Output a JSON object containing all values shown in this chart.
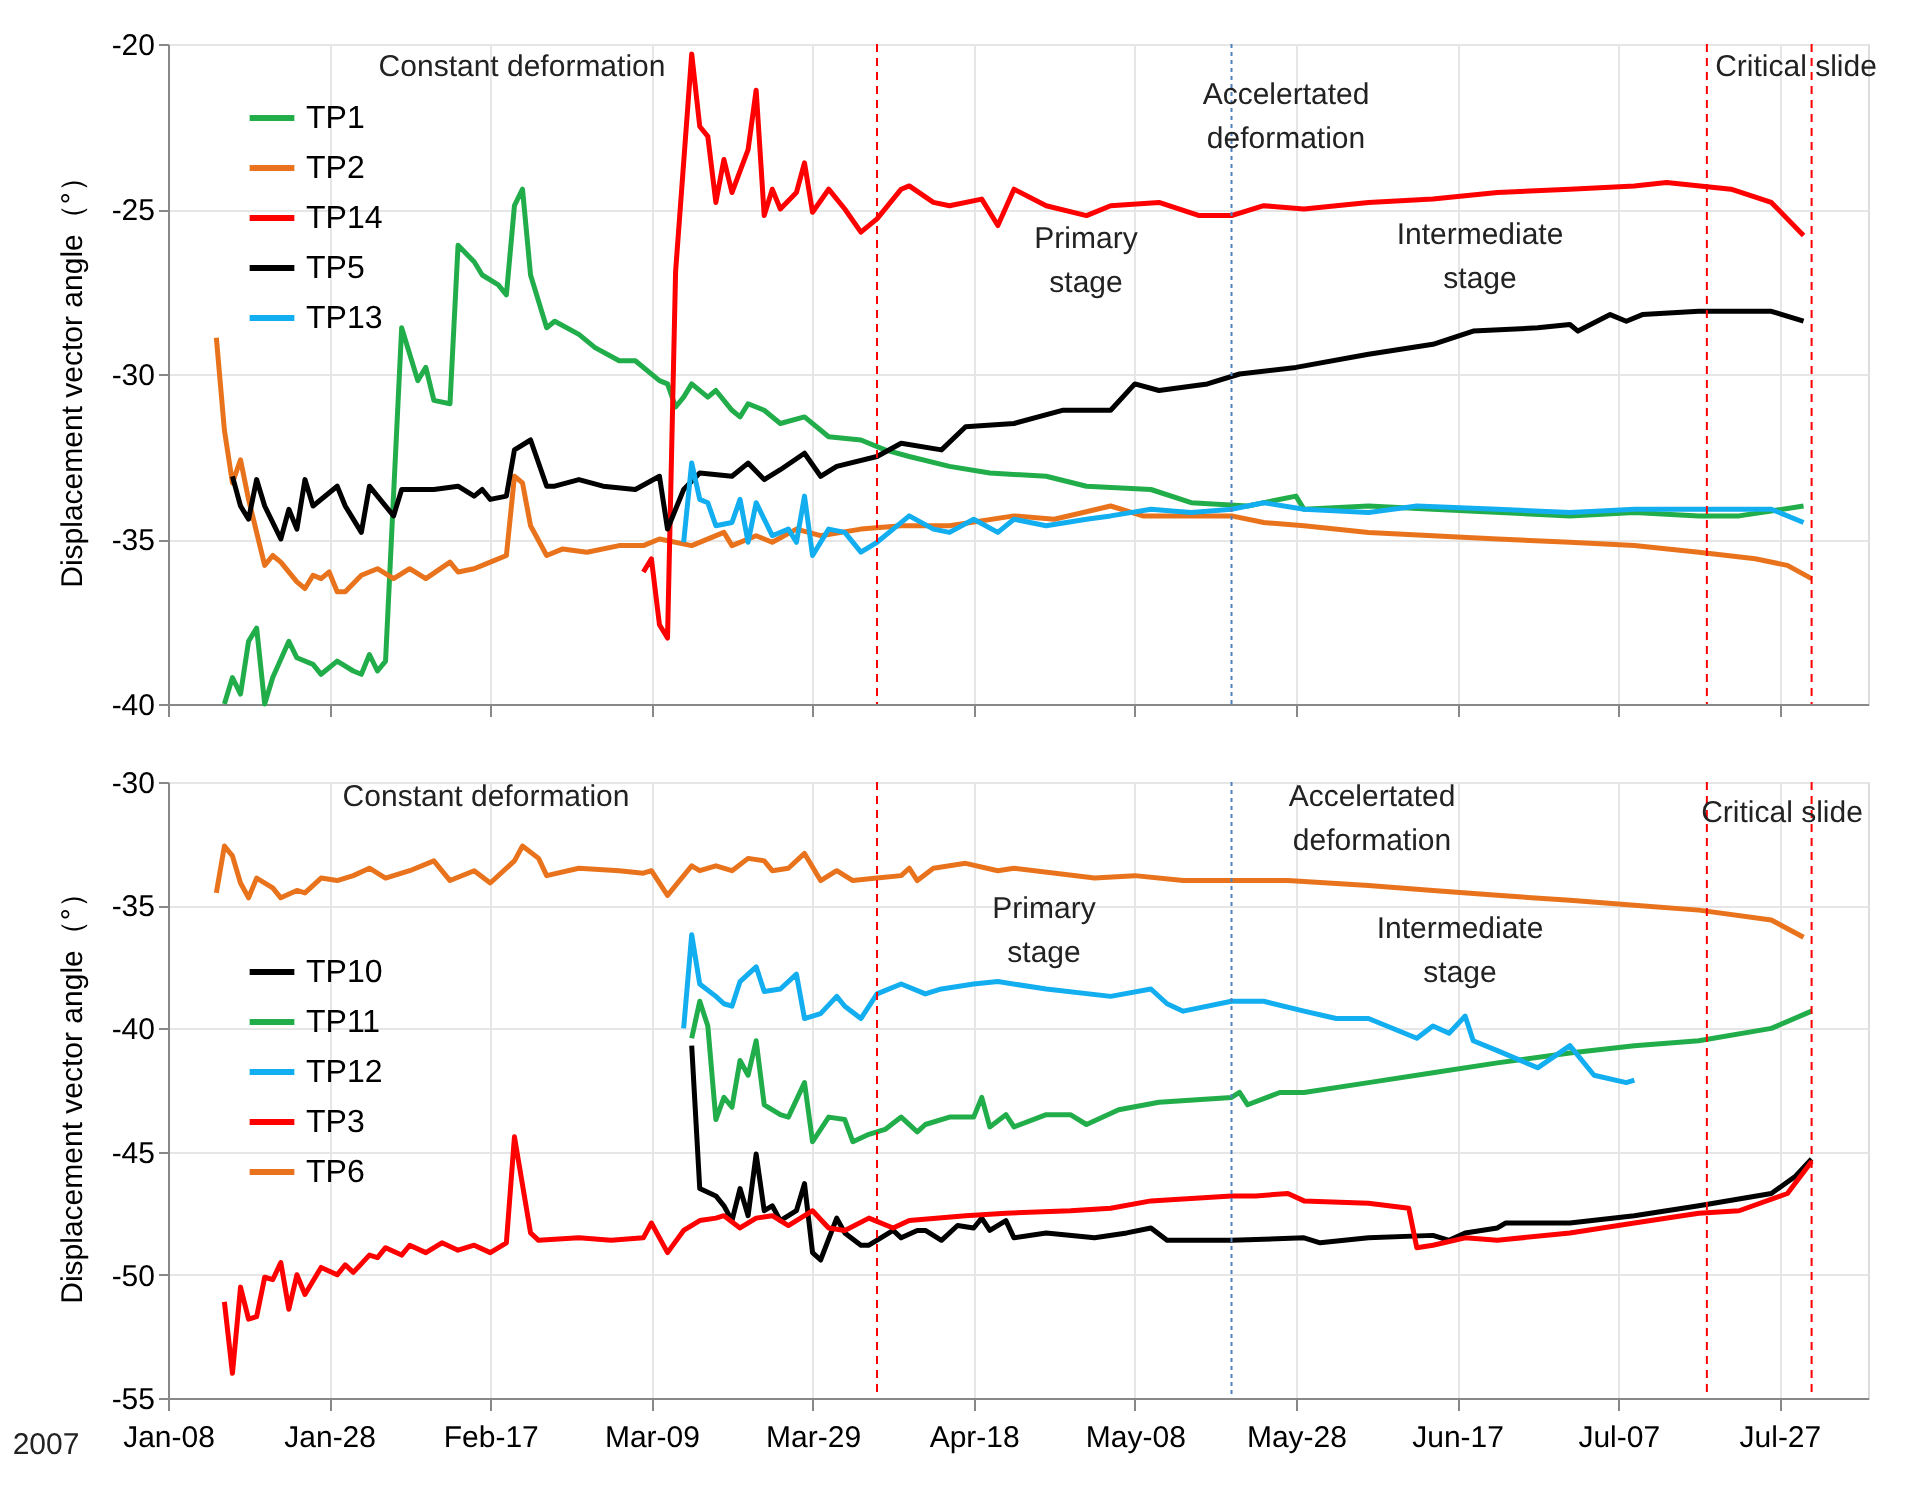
{
  "chart_data": [
    {
      "type": "line",
      "ylabel": "Displacement vector angle（°）",
      "xlim": [
        "2007-01-08",
        "2007-08-07"
      ],
      "ylim": [
        -40,
        -20
      ],
      "yticks": [
        -40,
        -35,
        -30,
        -25,
        -20
      ],
      "xticks": [
        {
          "value": "2007-01-08",
          "label": null
        },
        {
          "value": "2007-01-28",
          "label": null
        },
        {
          "value": "2007-02-17",
          "label": null
        },
        {
          "value": "2007-03-09",
          "label": null
        },
        {
          "value": "2007-03-29",
          "label": null
        },
        {
          "value": "2007-04-18",
          "label": null
        },
        {
          "value": "2007-05-08",
          "label": null
        },
        {
          "value": "2007-05-28",
          "label": null
        },
        {
          "value": "2007-06-17",
          "label": null
        },
        {
          "value": "2007-07-07",
          "label": null
        },
        {
          "value": "2007-07-27",
          "label": null
        }
      ],
      "tick_labels": "y",
      "grid": true,
      "legend": "top left",
      "series": [
        {
          "name": "TP1",
          "color": "#22ad4b",
          "x": [
            "2007-01-15",
            "2007-01-16",
            "2007-01-17",
            "2007-01-18",
            "2007-01-19",
            "2007-01-20",
            "2007-01-21",
            "2007-01-23",
            "2007-01-24",
            "2007-01-26",
            "2007-01-27",
            "2007-01-29",
            "2007-01-31",
            "2007-02-01",
            "2007-02-02",
            "2007-02-03",
            "2007-02-04",
            "2007-02-06",
            "2007-02-08",
            "2007-02-09",
            "2007-02-10",
            "2007-02-12",
            "2007-02-13",
            "2007-02-15",
            "2007-02-16",
            "2007-02-18",
            "2007-02-19",
            "2007-02-20",
            "2007-02-21",
            "2007-02-22",
            "2007-02-24",
            "2007-02-25",
            "2007-02-28",
            "2007-03-02",
            "2007-03-05",
            "2007-03-07",
            "2007-03-10",
            "2007-03-11",
            "2007-03-12",
            "2007-03-13",
            "2007-03-14",
            "2007-03-16",
            "2007-03-17",
            "2007-03-19",
            "2007-03-20",
            "2007-03-21",
            "2007-03-23",
            "2007-03-25",
            "2007-03-28",
            "2007-03-31",
            "2007-04-04",
            "2007-04-07",
            "2007-04-10",
            "2007-04-15",
            "2007-04-20",
            "2007-04-27",
            "2007-05-02",
            "2007-05-10",
            "2007-05-15",
            "2007-05-22",
            "2007-05-28",
            "2007-05-29",
            "2007-06-06",
            "2007-06-14",
            "2007-07-01",
            "2007-07-09",
            "2007-07-17",
            "2007-07-22",
            "2007-07-30"
          ],
          "values": [
            -40.0,
            -39.2,
            -39.7,
            -38.1,
            -37.7,
            -40.0,
            -39.2,
            -38.1,
            -38.6,
            -38.8,
            -39.1,
            -38.7,
            -39.0,
            -39.1,
            -38.5,
            -39.0,
            -38.7,
            -28.6,
            -30.2,
            -29.8,
            -30.8,
            -30.9,
            -26.1,
            -26.6,
            -27.0,
            -27.3,
            -27.6,
            -24.9,
            -24.4,
            -27.0,
            -28.6,
            -28.4,
            -28.8,
            -29.2,
            -29.6,
            -29.6,
            -30.2,
            -30.3,
            -31.0,
            -30.7,
            -30.3,
            -30.7,
            -30.5,
            -31.1,
            -31.3,
            -30.9,
            -31.1,
            -31.5,
            -31.3,
            -31.9,
            -32.0,
            -32.3,
            -32.5,
            -32.8,
            -33.0,
            -33.1,
            -33.4,
            -33.5,
            -33.9,
            -34.0,
            -33.7,
            -34.1,
            -34.0,
            -34.1,
            -34.3,
            -34.2,
            -34.3,
            -34.3,
            -34.0
          ]
        },
        {
          "name": "TP2",
          "color": "#e8731c",
          "x": [
            "2007-01-14",
            "2007-01-15",
            "2007-01-16",
            "2007-01-17",
            "2007-01-18",
            "2007-01-20",
            "2007-01-21",
            "2007-01-22",
            "2007-01-24",
            "2007-01-25",
            "2007-01-26",
            "2007-01-27",
            "2007-01-28",
            "2007-01-29",
            "2007-01-30",
            "2007-02-01",
            "2007-02-03",
            "2007-02-05",
            "2007-02-07",
            "2007-02-09",
            "2007-02-12",
            "2007-02-13",
            "2007-02-15",
            "2007-02-17",
            "2007-02-19",
            "2007-02-20",
            "2007-02-21",
            "2007-02-22",
            "2007-02-24",
            "2007-02-26",
            "2007-03-01",
            "2007-03-05",
            "2007-03-08",
            "2007-03-10",
            "2007-03-14",
            "2007-03-18",
            "2007-03-19",
            "2007-03-22",
            "2007-03-24",
            "2007-03-27",
            "2007-03-30",
            "2007-04-04",
            "2007-04-09",
            "2007-04-15",
            "2007-04-23",
            "2007-04-28",
            "2007-05-05",
            "2007-05-09",
            "2007-05-20",
            "2007-05-24",
            "2007-05-29",
            "2007-06-06",
            "2007-06-14",
            "2007-06-22",
            "2007-07-01",
            "2007-07-09",
            "2007-07-17",
            "2007-07-24",
            "2007-07-28",
            "2007-07-31"
          ],
          "values": [
            -28.9,
            -31.7,
            -33.3,
            -32.6,
            -33.8,
            -35.8,
            -35.5,
            -35.7,
            -36.3,
            -36.5,
            -36.1,
            -36.2,
            -36.0,
            -36.6,
            -36.6,
            -36.1,
            -35.9,
            -36.2,
            -35.9,
            -36.2,
            -35.7,
            -36.0,
            -35.9,
            -35.7,
            -35.5,
            -33.1,
            -33.3,
            -34.6,
            -35.5,
            -35.3,
            -35.4,
            -35.2,
            -35.2,
            -35.0,
            -35.2,
            -34.8,
            -35.2,
            -34.9,
            -35.1,
            -34.7,
            -34.9,
            -34.7,
            -34.6,
            -34.6,
            -34.3,
            -34.4,
            -34.0,
            -34.3,
            -34.3,
            -34.5,
            -34.6,
            -34.8,
            -34.9,
            -35.0,
            -35.1,
            -35.2,
            -35.4,
            -35.6,
            -35.8,
            -36.2
          ]
        },
        {
          "name": "TP14",
          "color": "#ff0000",
          "x": [
            "2007-03-08",
            "2007-03-09",
            "2007-03-10",
            "2007-03-11",
            "2007-03-12",
            "2007-03-14",
            "2007-03-15",
            "2007-03-16",
            "2007-03-17",
            "2007-03-18",
            "2007-03-19",
            "2007-03-21",
            "2007-03-22",
            "2007-03-23",
            "2007-03-24",
            "2007-03-25",
            "2007-03-27",
            "2007-03-28",
            "2007-03-29",
            "2007-03-31",
            "2007-04-02",
            "2007-04-04",
            "2007-04-06",
            "2007-04-09",
            "2007-04-10",
            "2007-04-13",
            "2007-04-15",
            "2007-04-19",
            "2007-04-21",
            "2007-04-23",
            "2007-04-27",
            "2007-05-02",
            "2007-05-05",
            "2007-05-11",
            "2007-05-16",
            "2007-05-20",
            "2007-05-24",
            "2007-05-29",
            "2007-06-06",
            "2007-06-14",
            "2007-06-22",
            "2007-07-01",
            "2007-07-09",
            "2007-07-13",
            "2007-07-21",
            "2007-07-26",
            "2007-07-30"
          ],
          "values": [
            -36.0,
            -35.6,
            -37.6,
            -38.0,
            -26.9,
            -20.3,
            -22.5,
            -22.8,
            -24.8,
            -23.5,
            -24.5,
            -23.2,
            -21.4,
            -25.2,
            -24.4,
            -25.0,
            -24.5,
            -23.6,
            -25.1,
            -24.4,
            -25.0,
            -25.7,
            -25.3,
            -24.4,
            -24.3,
            -24.8,
            -24.9,
            -24.7,
            -25.5,
            -24.4,
            -24.9,
            -25.2,
            -24.9,
            -24.8,
            -25.2,
            -25.2,
            -24.9,
            -25.0,
            -24.8,
            -24.7,
            -24.5,
            -24.4,
            -24.3,
            -24.2,
            -24.4,
            -24.8,
            -25.8
          ]
        },
        {
          "name": "TP5",
          "color": "#000000",
          "x": [
            "2007-01-16",
            "2007-01-17",
            "2007-01-18",
            "2007-01-19",
            "2007-01-20",
            "2007-01-22",
            "2007-01-23",
            "2007-01-24",
            "2007-01-25",
            "2007-01-26",
            "2007-01-29",
            "2007-01-30",
            "2007-02-01",
            "2007-02-02",
            "2007-02-03",
            "2007-02-05",
            "2007-02-06",
            "2007-02-10",
            "2007-02-13",
            "2007-02-15",
            "2007-02-16",
            "2007-02-17",
            "2007-02-19",
            "2007-02-20",
            "2007-02-22",
            "2007-02-24",
            "2007-02-25",
            "2007-02-28",
            "2007-03-03",
            "2007-03-07",
            "2007-03-10",
            "2007-03-11",
            "2007-03-13",
            "2007-03-15",
            "2007-03-19",
            "2007-03-21",
            "2007-03-23",
            "2007-03-25",
            "2007-03-28",
            "2007-03-30",
            "2007-04-01",
            "2007-04-06",
            "2007-04-09",
            "2007-04-14",
            "2007-04-17",
            "2007-04-23",
            "2007-04-29",
            "2007-05-05",
            "2007-05-08",
            "2007-05-11",
            "2007-05-17",
            "2007-05-21",
            "2007-05-28",
            "2007-06-06",
            "2007-06-14",
            "2007-06-19",
            "2007-06-27",
            "2007-07-01",
            "2007-07-02",
            "2007-07-06",
            "2007-07-08",
            "2007-07-10",
            "2007-07-17",
            "2007-07-26",
            "2007-07-30"
          ],
          "values": [
            -33.1,
            -34.0,
            -34.4,
            -33.2,
            -34.0,
            -35.0,
            -34.1,
            -34.7,
            -33.2,
            -34.0,
            -33.4,
            -34.0,
            -34.8,
            -33.4,
            -33.7,
            -34.3,
            -33.5,
            -33.5,
            -33.4,
            -33.7,
            -33.5,
            -33.8,
            -33.7,
            -32.3,
            -32.0,
            -33.4,
            -33.4,
            -33.2,
            -33.4,
            -33.5,
            -33.1,
            -34.7,
            -33.5,
            -33.0,
            -33.1,
            -32.7,
            -33.2,
            -32.9,
            -32.4,
            -33.1,
            -32.8,
            -32.5,
            -32.1,
            -32.3,
            -31.6,
            -31.5,
            -31.1,
            -31.1,
            -30.3,
            -30.5,
            -30.3,
            -30.0,
            -29.8,
            -29.4,
            -29.1,
            -28.7,
            -28.6,
            -28.5,
            -28.7,
            -28.2,
            -28.4,
            -28.2,
            -28.1,
            -28.1,
            -28.4
          ]
        },
        {
          "name": "TP13",
          "color": "#12aef0",
          "x": [
            "2007-03-13",
            "2007-03-14",
            "2007-03-15",
            "2007-03-16",
            "2007-03-17",
            "2007-03-19",
            "2007-03-20",
            "2007-03-21",
            "2007-03-22",
            "2007-03-24",
            "2007-03-26",
            "2007-03-27",
            "2007-03-28",
            "2007-03-29",
            "2007-03-31",
            "2007-04-02",
            "2007-04-04",
            "2007-04-06",
            "2007-04-08",
            "2007-04-10",
            "2007-04-13",
            "2007-04-15",
            "2007-04-18",
            "2007-04-21",
            "2007-04-23",
            "2007-04-27",
            "2007-05-02",
            "2007-05-05",
            "2007-05-10",
            "2007-05-15",
            "2007-05-20",
            "2007-05-24",
            "2007-05-29",
            "2007-06-06",
            "2007-06-12",
            "2007-06-22",
            "2007-07-01",
            "2007-07-09",
            "2007-07-17",
            "2007-07-26",
            "2007-07-30"
          ],
          "values": [
            -35.1,
            -32.7,
            -33.8,
            -33.9,
            -34.6,
            -34.5,
            -33.8,
            -35.1,
            -33.9,
            -34.9,
            -34.7,
            -35.1,
            -33.7,
            -35.5,
            -34.7,
            -34.8,
            -35.4,
            -35.1,
            -34.7,
            -34.3,
            -34.7,
            -34.8,
            -34.4,
            -34.8,
            -34.4,
            -34.6,
            -34.4,
            -34.3,
            -34.1,
            -34.2,
            -34.1,
            -33.9,
            -34.1,
            -34.2,
            -34.0,
            -34.1,
            -34.2,
            -34.1,
            -34.1,
            -34.1,
            -34.5
          ]
        }
      ],
      "ref_lines": [
        {
          "axis": "x",
          "value": "2007-04-06",
          "color": "#ff0000",
          "line_style": "dashed"
        },
        {
          "axis": "x",
          "value": "2007-05-20",
          "color": "#4f81bd",
          "line_style": "dotted"
        },
        {
          "axis": "x",
          "value": "2007-07-18",
          "color": "#ff0000",
          "line_style": "dashed"
        },
        {
          "axis": "x",
          "value": "2007-07-31",
          "color": "#ff0000",
          "line_style": "dashed"
        }
      ],
      "annotations": [
        "Constant deformation",
        "Accelertated\ndeformation",
        "Primary\nstage",
        "Intermediate\nstage",
        "Critical slide"
      ]
    },
    {
      "type": "line",
      "ylabel": "Displacement vector angle（°）",
      "xlim": [
        "2007-01-08",
        "2007-08-07"
      ],
      "ylim": [
        -55,
        -30
      ],
      "yticks": [
        -55,
        -50,
        -45,
        -40,
        -35,
        -30
      ],
      "xticks": [
        {
          "value": "2007-01-08",
          "label": "Jan-08"
        },
        {
          "value": "2007-01-28",
          "label": "Jan-28"
        },
        {
          "value": "2007-02-17",
          "label": "Feb-17"
        },
        {
          "value": "2007-03-09",
          "label": "Mar-09"
        },
        {
          "value": "2007-03-29",
          "label": "Mar-29"
        },
        {
          "value": "2007-04-18",
          "label": "Apr-18"
        },
        {
          "value": "2007-05-08",
          "label": "May-08"
        },
        {
          "value": "2007-05-28",
          "label": "May-28"
        },
        {
          "value": "2007-06-17",
          "label": "Jun-17"
        },
        {
          "value": "2007-07-07",
          "label": "Jul-07"
        },
        {
          "value": "2007-07-27",
          "label": "Jul-27"
        }
      ],
      "grid": true,
      "legend": "left",
      "series": [
        {
          "name": "TP10",
          "color": "#000000",
          "x": [
            "2007-03-14",
            "2007-03-15",
            "2007-03-17",
            "2007-03-18",
            "2007-03-19",
            "2007-03-20",
            "2007-03-21",
            "2007-03-22",
            "2007-03-23",
            "2007-03-24",
            "2007-03-25",
            "2007-03-27",
            "2007-03-28",
            "2007-03-29",
            "2007-03-30",
            "2007-04-01",
            "2007-04-02",
            "2007-04-04",
            "2007-04-05",
            "2007-04-08",
            "2007-04-09",
            "2007-04-11",
            "2007-04-12",
            "2007-04-14",
            "2007-04-16",
            "2007-04-18",
            "2007-04-19",
            "2007-04-20",
            "2007-04-22",
            "2007-04-23",
            "2007-04-27",
            "2007-05-03",
            "2007-05-07",
            "2007-05-10",
            "2007-05-12",
            "2007-05-20",
            "2007-05-29",
            "2007-05-31",
            "2007-06-06",
            "2007-06-14",
            "2007-06-16",
            "2007-06-18",
            "2007-06-22",
            "2007-06-23",
            "2007-07-01",
            "2007-07-09",
            "2007-07-17",
            "2007-07-26",
            "2007-07-29",
            "2007-07-31"
          ],
          "values": [
            -40.7,
            -46.5,
            -46.8,
            -47.2,
            -47.8,
            -46.5,
            -47.6,
            -45.1,
            -47.4,
            -47.2,
            -47.8,
            -47.4,
            -46.3,
            -49.1,
            -49.4,
            -47.7,
            -48.3,
            -48.8,
            -48.8,
            -48.2,
            -48.5,
            -48.2,
            -48.2,
            -48.6,
            -48.0,
            -48.1,
            -47.7,
            -48.2,
            -47.8,
            -48.5,
            -48.3,
            -48.5,
            -48.3,
            -48.1,
            -48.6,
            -48.6,
            -48.5,
            -48.7,
            -48.5,
            -48.4,
            -48.6,
            -48.3,
            -48.1,
            -47.9,
            -47.9,
            -47.6,
            -47.2,
            -46.7,
            -46.0,
            -45.3
          ]
        },
        {
          "name": "TP11",
          "color": "#22ad4b",
          "x": [
            "2007-03-14",
            "2007-03-15",
            "2007-03-16",
            "2007-03-17",
            "2007-03-18",
            "2007-03-19",
            "2007-03-20",
            "2007-03-21",
            "2007-03-22",
            "2007-03-23",
            "2007-03-25",
            "2007-03-26",
            "2007-03-28",
            "2007-03-29",
            "2007-03-31",
            "2007-04-02",
            "2007-04-03",
            "2007-04-05",
            "2007-04-07",
            "2007-04-09",
            "2007-04-11",
            "2007-04-12",
            "2007-04-15",
            "2007-04-18",
            "2007-04-19",
            "2007-04-20",
            "2007-04-22",
            "2007-04-23",
            "2007-04-27",
            "2007-04-30",
            "2007-05-02",
            "2007-05-06",
            "2007-05-11",
            "2007-05-20",
            "2007-05-21",
            "2007-05-22",
            "2007-05-26",
            "2007-05-29",
            "2007-06-06",
            "2007-06-14",
            "2007-06-22",
            "2007-07-01",
            "2007-07-09",
            "2007-07-17",
            "2007-07-26",
            "2007-07-31"
          ],
          "values": [
            -40.4,
            -38.9,
            -39.9,
            -43.7,
            -42.8,
            -43.2,
            -41.3,
            -41.9,
            -40.5,
            -43.1,
            -43.5,
            -43.6,
            -42.2,
            -44.6,
            -43.6,
            -43.7,
            -44.6,
            -44.3,
            -44.1,
            -43.6,
            -44.2,
            -43.9,
            -43.6,
            -43.6,
            -42.8,
            -44.0,
            -43.5,
            -44.0,
            -43.5,
            -43.5,
            -43.9,
            -43.3,
            -43.0,
            -42.8,
            -42.6,
            -43.1,
            -42.6,
            -42.6,
            -42.2,
            -41.8,
            -41.4,
            -41.0,
            -40.7,
            -40.5,
            -40.0,
            -39.3
          ]
        },
        {
          "name": "TP12",
          "color": "#12aef0",
          "x": [
            "2007-03-13",
            "2007-03-14",
            "2007-03-15",
            "2007-03-17",
            "2007-03-18",
            "2007-03-19",
            "2007-03-20",
            "2007-03-22",
            "2007-03-23",
            "2007-03-25",
            "2007-03-27",
            "2007-03-28",
            "2007-03-30",
            "2007-04-01",
            "2007-04-02",
            "2007-04-04",
            "2007-04-06",
            "2007-04-09",
            "2007-04-12",
            "2007-04-14",
            "2007-04-18",
            "2007-04-21",
            "2007-04-27",
            "2007-05-05",
            "2007-05-10",
            "2007-05-12",
            "2007-05-14",
            "2007-05-20",
            "2007-05-24",
            "2007-05-29",
            "2007-06-02",
            "2007-06-06",
            "2007-06-12",
            "2007-06-14",
            "2007-06-16",
            "2007-06-18",
            "2007-06-19",
            "2007-06-22",
            "2007-06-27",
            "2007-07-01",
            "2007-07-04",
            "2007-07-08",
            "2007-07-09"
          ],
          "values": [
            -40.0,
            -36.2,
            -38.2,
            -38.7,
            -39.0,
            -39.1,
            -38.1,
            -37.5,
            -38.5,
            -38.4,
            -37.8,
            -39.6,
            -39.4,
            -38.7,
            -39.1,
            -39.6,
            -38.6,
            -38.2,
            -38.6,
            -38.4,
            -38.2,
            -38.1,
            -38.4,
            -38.7,
            -38.4,
            -39.0,
            -39.3,
            -38.9,
            -38.9,
            -39.3,
            -39.6,
            -39.6,
            -40.4,
            -39.9,
            -40.2,
            -39.5,
            -40.5,
            -40.9,
            -41.6,
            -40.7,
            -41.9,
            -42.2,
            -42.1
          ]
        },
        {
          "name": "TP3",
          "color": "#ff0000",
          "x": [
            "2007-01-15",
            "2007-01-16",
            "2007-01-17",
            "2007-01-18",
            "2007-01-19",
            "2007-01-20",
            "2007-01-21",
            "2007-01-22",
            "2007-01-23",
            "2007-01-24",
            "2007-01-25",
            "2007-01-27",
            "2007-01-29",
            "2007-01-30",
            "2007-01-31",
            "2007-02-02",
            "2007-02-03",
            "2007-02-04",
            "2007-02-06",
            "2007-02-07",
            "2007-02-09",
            "2007-02-11",
            "2007-02-13",
            "2007-02-15",
            "2007-02-17",
            "2007-02-19",
            "2007-02-20",
            "2007-02-22",
            "2007-02-23",
            "2007-02-28",
            "2007-03-04",
            "2007-03-08",
            "2007-03-09",
            "2007-03-11",
            "2007-03-13",
            "2007-03-15",
            "2007-03-17",
            "2007-03-18",
            "2007-03-20",
            "2007-03-22",
            "2007-03-24",
            "2007-03-26",
            "2007-03-29",
            "2007-03-31",
            "2007-04-02",
            "2007-04-05",
            "2007-04-08",
            "2007-04-10",
            "2007-04-17",
            "2007-04-22",
            "2007-04-30",
            "2007-05-05",
            "2007-05-10",
            "2007-05-20",
            "2007-05-23",
            "2007-05-27",
            "2007-05-29",
            "2007-06-06",
            "2007-06-11",
            "2007-06-12",
            "2007-06-14",
            "2007-06-18",
            "2007-06-22",
            "2007-07-01",
            "2007-07-09",
            "2007-07-17",
            "2007-07-22",
            "2007-07-28",
            "2007-07-31"
          ],
          "values": [
            -51.1,
            -54.0,
            -50.5,
            -51.8,
            -51.7,
            -50.1,
            -50.2,
            -49.5,
            -51.4,
            -50.0,
            -50.8,
            -49.7,
            -50.0,
            -49.6,
            -49.9,
            -49.2,
            -49.3,
            -48.9,
            -49.2,
            -48.8,
            -49.1,
            -48.7,
            -49.0,
            -48.8,
            -49.1,
            -48.7,
            -44.4,
            -48.3,
            -48.6,
            -48.5,
            -48.6,
            -48.5,
            -47.9,
            -49.1,
            -48.2,
            -47.8,
            -47.7,
            -47.6,
            -48.1,
            -47.7,
            -47.6,
            -48.0,
            -47.4,
            -48.1,
            -48.2,
            -47.7,
            -48.1,
            -47.8,
            -47.6,
            -47.5,
            -47.4,
            -47.3,
            -47.0,
            -46.8,
            -46.8,
            -46.7,
            -47.0,
            -47.1,
            -47.3,
            -48.9,
            -48.8,
            -48.5,
            -48.6,
            -48.3,
            -47.9,
            -47.5,
            -47.4,
            -46.7,
            -45.4
          ]
        },
        {
          "name": "TP6",
          "color": "#e8731c",
          "x": [
            "2007-01-14",
            "2007-01-15",
            "2007-01-16",
            "2007-01-17",
            "2007-01-18",
            "2007-01-19",
            "2007-01-21",
            "2007-01-22",
            "2007-01-24",
            "2007-01-25",
            "2007-01-27",
            "2007-01-29",
            "2007-01-31",
            "2007-02-02",
            "2007-02-04",
            "2007-02-07",
            "2007-02-10",
            "2007-02-12",
            "2007-02-15",
            "2007-02-17",
            "2007-02-20",
            "2007-02-21",
            "2007-02-23",
            "2007-02-24",
            "2007-02-28",
            "2007-03-05",
            "2007-03-08",
            "2007-03-09",
            "2007-03-11",
            "2007-03-14",
            "2007-03-15",
            "2007-03-17",
            "2007-03-19",
            "2007-03-21",
            "2007-03-23",
            "2007-03-24",
            "2007-03-26",
            "2007-03-28",
            "2007-03-30",
            "2007-04-01",
            "2007-04-03",
            "2007-04-06",
            "2007-04-09",
            "2007-04-10",
            "2007-04-11",
            "2007-04-13",
            "2007-04-17",
            "2007-04-21",
            "2007-04-23",
            "2007-05-03",
            "2007-05-08",
            "2007-05-14",
            "2007-05-20",
            "2007-05-27",
            "2007-06-06",
            "2007-06-14",
            "2007-06-22",
            "2007-07-01",
            "2007-07-09",
            "2007-07-17",
            "2007-07-26",
            "2007-07-30"
          ],
          "values": [
            -34.5,
            -32.6,
            -33.0,
            -34.1,
            -34.7,
            -33.9,
            -34.3,
            -34.7,
            -34.4,
            -34.5,
            -33.9,
            -34.0,
            -33.8,
            -33.5,
            -33.9,
            -33.6,
            -33.2,
            -34.0,
            -33.6,
            -34.1,
            -33.2,
            -32.6,
            -33.1,
            -33.8,
            -33.5,
            -33.6,
            -33.7,
            -33.6,
            -34.6,
            -33.4,
            -33.6,
            -33.4,
            -33.6,
            -33.1,
            -33.2,
            -33.6,
            -33.5,
            -32.9,
            -34.0,
            -33.6,
            -34.0,
            -33.9,
            -33.8,
            -33.5,
            -34.0,
            -33.5,
            -33.3,
            -33.6,
            -33.5,
            -33.9,
            -33.8,
            -34.0,
            -34.0,
            -34.0,
            -34.2,
            -34.4,
            -34.6,
            -34.8,
            -35.0,
            -35.2,
            -35.6,
            -36.3
          ]
        }
      ],
      "ref_lines": [
        {
          "axis": "x",
          "value": "2007-04-06",
          "color": "#ff0000",
          "line_style": "dashed"
        },
        {
          "axis": "x",
          "value": "2007-05-20",
          "color": "#4f81bd",
          "line_style": "dotted"
        },
        {
          "axis": "x",
          "value": "2007-07-18",
          "color": "#ff0000",
          "line_style": "dashed"
        },
        {
          "axis": "x",
          "value": "2007-07-31",
          "color": "#ff0000",
          "line_style": "dashed"
        }
      ],
      "annotations": [
        "Constant deformation",
        "Accelertated\ndeformation",
        "Primary\nstage",
        "Intermediate\nstage",
        "Critical slide",
        "2007"
      ]
    }
  ]
}
